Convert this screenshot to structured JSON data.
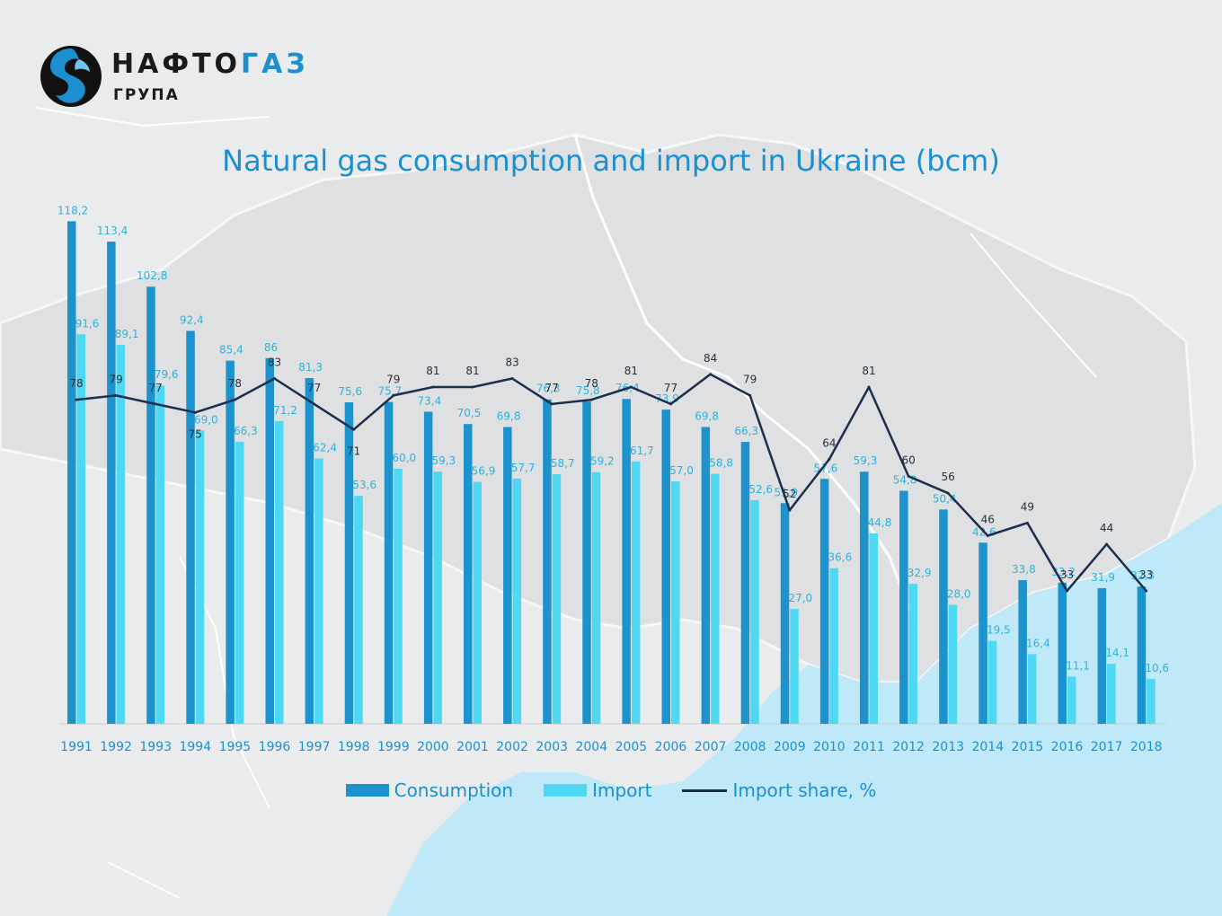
{
  "logo": {
    "name_part1": "НАФТО",
    "name_part2": "ГАЗ",
    "subtitle": "ГРУПА"
  },
  "colors": {
    "consumption": "#1c93cc",
    "import": "#4fd8f2",
    "import_share": "#1b2e4b",
    "title": "#1c8fd0",
    "label": "#2bb3dd"
  },
  "chart_data": {
    "type": "bar",
    "title": "Natural gas consumption and import in Ukraine (bcm)",
    "categories": [
      "1991",
      "1992",
      "1993",
      "1994",
      "1995",
      "1996",
      "1997",
      "1998",
      "1999",
      "2000",
      "2001",
      "2002",
      "2003",
      "2004",
      "2005",
      "2006",
      "2007",
      "2008",
      "2009",
      "2010",
      "2011",
      "2012",
      "2013",
      "2014",
      "2015",
      "2016",
      "2017",
      "2018"
    ],
    "series": [
      {
        "name": "Consumption",
        "type": "bar",
        "values": [
          118.2,
          113.4,
          102.8,
          92.4,
          85.4,
          86,
          81.3,
          75.6,
          75.7,
          73.4,
          70.5,
          69.8,
          76.3,
          75.8,
          76.4,
          73.9,
          69.8,
          66.3,
          51.9,
          57.6,
          59.3,
          54.8,
          50.4,
          42.6,
          33.8,
          33.2,
          31.9,
          32.3
        ],
        "labels": [
          "118,2",
          "113,4",
          "102,8",
          "92,4",
          "85,4",
          "86",
          "81,3",
          "75,6",
          "75,7",
          "73,4",
          "70,5",
          "69,8",
          "76,3",
          "75,8",
          "76,4",
          "73,9",
          "69,8",
          "66,3",
          "51,9",
          "57,6",
          "59,3",
          "54,8",
          "50,4",
          "42,6",
          "33,8",
          "33,2",
          "31,9",
          "32,3"
        ]
      },
      {
        "name": "Import",
        "type": "bar",
        "values": [
          91.6,
          89.1,
          79.6,
          69.0,
          66.3,
          71.2,
          62.4,
          53.6,
          60.0,
          59.3,
          56.9,
          57.7,
          58.7,
          59.2,
          61.7,
          57.0,
          58.8,
          52.6,
          27.0,
          36.6,
          44.8,
          32.9,
          28.0,
          19.5,
          16.4,
          11.1,
          14.1,
          10.6
        ],
        "labels": [
          "91,6",
          "89,1",
          "79,6",
          "69,0",
          "66,3",
          "71,2",
          "62,4",
          "53,6",
          "60,0",
          "59,3",
          "56,9",
          "57,7",
          "58,7",
          "59,2",
          "61,7",
          "57,0",
          "58,8",
          "52,6",
          "27,0",
          "36,6",
          "44,8",
          "32,9",
          "28,0",
          "19,5",
          "16,4",
          "11,1",
          "14,1",
          "10,6"
        ]
      },
      {
        "name": "Import share, %",
        "type": "line",
        "values": [
          78,
          79,
          77,
          75,
          78,
          83,
          77,
          71,
          79,
          81,
          81,
          83,
          77,
          78,
          81,
          77,
          84,
          79,
          52,
          64,
          81,
          60,
          56,
          46,
          49,
          33,
          44,
          33
        ],
        "labels": [
          "78",
          "79",
          "77",
          "75",
          "78",
          "83",
          "77",
          "71",
          "79",
          "81",
          "81",
          "83",
          "77",
          "78",
          "81",
          "77",
          "84",
          "79",
          "52",
          "64",
          "81",
          "60",
          "56",
          "46",
          "49",
          "33",
          "44",
          "33"
        ]
      }
    ],
    "ylim": [
      0,
      125
    ],
    "grid": false,
    "legend": "bottom-center"
  }
}
